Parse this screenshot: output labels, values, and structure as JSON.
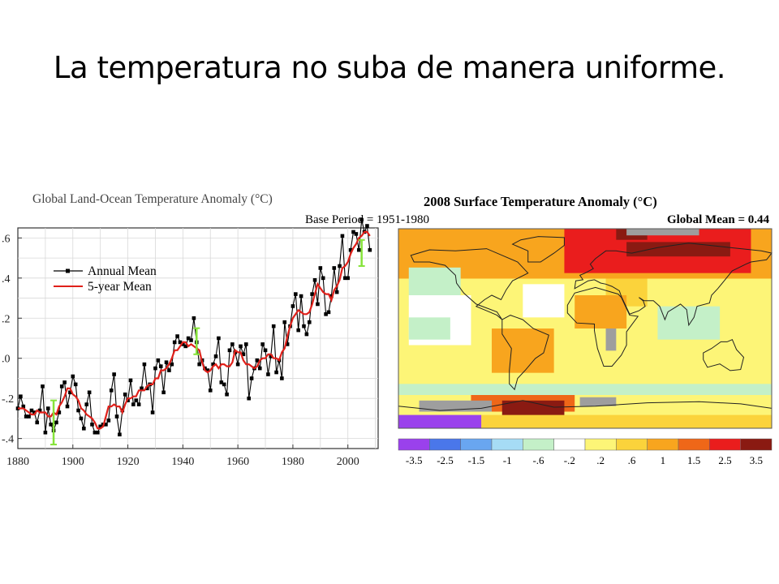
{
  "slide": {
    "title": "La temperatura no suba de manera uniforme."
  },
  "colors": {
    "annual_mean": "#000000",
    "five_year_mean": "#e0201a",
    "uncertainty_bars": "#86e33a"
  },
  "chart_data": [
    {
      "type": "line",
      "title": "Global Land-Ocean Temperature Anomaly (°C)",
      "subtitle": "",
      "xlabel": "",
      "ylabel": "",
      "xlim": [
        1880,
        2011
      ],
      "ylim": [
        -0.45,
        0.65
      ],
      "x_ticks": [
        1880,
        1900,
        1920,
        1940,
        1960,
        1980,
        2000
      ],
      "x_tick_labels": [
        "1880",
        "1900",
        "1920",
        "1940",
        "1960",
        "1980",
        "2000"
      ],
      "y_ticks": [
        -0.4,
        -0.2,
        0.0,
        0.2,
        0.4,
        0.6
      ],
      "y_tick_labels": [
        "-.4",
        "-.2",
        ".0",
        ".2",
        ".4",
        ".6"
      ],
      "grid": true,
      "legend": "top-left",
      "x": [
        1880,
        1881,
        1882,
        1883,
        1884,
        1885,
        1886,
        1887,
        1888,
        1889,
        1890,
        1891,
        1892,
        1893,
        1894,
        1895,
        1896,
        1897,
        1898,
        1899,
        1900,
        1901,
        1902,
        1903,
        1904,
        1905,
        1906,
        1907,
        1908,
        1909,
        1910,
        1911,
        1912,
        1913,
        1914,
        1915,
        1916,
        1917,
        1918,
        1919,
        1920,
        1921,
        1922,
        1923,
        1924,
        1925,
        1926,
        1927,
        1928,
        1929,
        1930,
        1931,
        1932,
        1933,
        1934,
        1935,
        1936,
        1937,
        1938,
        1939,
        1940,
        1941,
        1942,
        1943,
        1944,
        1945,
        1946,
        1947,
        1948,
        1949,
        1950,
        1951,
        1952,
        1953,
        1954,
        1955,
        1956,
        1957,
        1958,
        1959,
        1960,
        1961,
        1962,
        1963,
        1964,
        1965,
        1966,
        1967,
        1968,
        1969,
        1970,
        1971,
        1972,
        1973,
        1974,
        1975,
        1976,
        1977,
        1978,
        1979,
        1980,
        1981,
        1982,
        1983,
        1984,
        1985,
        1986,
        1987,
        1988,
        1989,
        1990,
        1991,
        1992,
        1993,
        1994,
        1995,
        1996,
        1997,
        1998,
        1999,
        2000,
        2001,
        2002,
        2003,
        2004,
        2005,
        2006,
        2007,
        2008
      ],
      "series": [
        {
          "name": "Annual Mean",
          "values": [
            -0.25,
            -0.19,
            -0.24,
            -0.29,
            -0.29,
            -0.26,
            -0.27,
            -0.32,
            -0.26,
            -0.14,
            -0.37,
            -0.25,
            -0.33,
            -0.36,
            -0.32,
            -0.27,
            -0.14,
            -0.12,
            -0.24,
            -0.17,
            -0.09,
            -0.13,
            -0.26,
            -0.3,
            -0.35,
            -0.23,
            -0.17,
            -0.33,
            -0.37,
            -0.37,
            -0.34,
            -0.33,
            -0.33,
            -0.31,
            -0.16,
            -0.08,
            -0.29,
            -0.38,
            -0.26,
            -0.18,
            -0.21,
            -0.11,
            -0.23,
            -0.21,
            -0.23,
            -0.15,
            -0.03,
            -0.15,
            -0.13,
            -0.27,
            -0.05,
            -0.01,
            -0.04,
            -0.17,
            -0.02,
            -0.06,
            -0.03,
            0.08,
            0.11,
            0.08,
            0.07,
            0.06,
            0.1,
            0.09,
            0.2,
            0.08,
            -0.03,
            -0.01,
            -0.05,
            -0.06,
            -0.16,
            -0.03,
            0.01,
            0.1,
            -0.12,
            -0.13,
            -0.18,
            0.04,
            0.07,
            0.03,
            -0.03,
            0.06,
            0.02,
            0.07,
            -0.2,
            -0.1,
            -0.05,
            -0.01,
            -0.05,
            0.07,
            0.04,
            -0.08,
            0.01,
            0.16,
            -0.07,
            -0.01,
            -0.1,
            0.18,
            0.07,
            0.16,
            0.26,
            0.32,
            0.14,
            0.31,
            0.16,
            0.12,
            0.18,
            0.32,
            0.39,
            0.27,
            0.45,
            0.4,
            0.22,
            0.23,
            0.31,
            0.45,
            0.33,
            0.46,
            0.61,
            0.4,
            0.4,
            0.54,
            0.63,
            0.62,
            0.54,
            0.69,
            0.63,
            0.66,
            0.54
          ]
        },
        {
          "name": "5-year Mean",
          "values": [
            -0.25,
            -0.25,
            -0.25,
            -0.26,
            -0.27,
            -0.28,
            -0.28,
            -0.26,
            -0.27,
            -0.27,
            -0.27,
            -0.29,
            -0.29,
            -0.27,
            -0.28,
            -0.24,
            -0.22,
            -0.19,
            -0.15,
            -0.15,
            -0.18,
            -0.19,
            -0.21,
            -0.25,
            -0.26,
            -0.28,
            -0.29,
            -0.3,
            -0.32,
            -0.35,
            -0.35,
            -0.34,
            -0.29,
            -0.24,
            -0.24,
            -0.23,
            -0.24,
            -0.24,
            -0.27,
            -0.23,
            -0.2,
            -0.2,
            -0.19,
            -0.19,
            -0.16,
            -0.16,
            -0.16,
            -0.14,
            -0.13,
            -0.13,
            -0.1,
            -0.1,
            -0.06,
            -0.06,
            -0.05,
            -0.03,
            0.0,
            0.04,
            0.04,
            0.06,
            0.08,
            0.08,
            0.06,
            0.07,
            0.06,
            0.05,
            0.04,
            -0.02,
            -0.06,
            -0.07,
            -0.06,
            -0.04,
            -0.03,
            -0.05,
            -0.03,
            -0.03,
            -0.04,
            -0.04,
            -0.02,
            0.04,
            0.03,
            0.03,
            -0.01,
            -0.03,
            -0.03,
            -0.04,
            -0.05,
            -0.04,
            -0.01,
            0.0,
            0.0,
            0.02,
            0.02,
            0.0,
            0.0,
            -0.01,
            0.03,
            0.05,
            0.11,
            0.16,
            0.2,
            0.22,
            0.24,
            0.23,
            0.22,
            0.22,
            0.23,
            0.27,
            0.32,
            0.37,
            0.35,
            0.33,
            0.32,
            0.32,
            0.29,
            0.34,
            0.36,
            0.39,
            0.45,
            0.46,
            0.48,
            0.52,
            0.55,
            0.57,
            0.6,
            0.61,
            0.63,
            0.63,
            0.61
          ]
        }
      ],
      "error_bars": [
        {
          "x": 1893,
          "low": -0.43,
          "high": -0.21
        },
        {
          "x": 1945,
          "low": 0.02,
          "high": 0.15
        },
        {
          "x": 2005,
          "low": 0.46,
          "high": 0.59
        }
      ]
    },
    {
      "type": "heatmap",
      "title": "2008 Surface Temperature Anomaly (°C)",
      "subtitle": "Base Period = 1951-1980",
      "annotation": "Global Mean = 0.44",
      "xlim": [
        -180,
        180
      ],
      "ylim": [
        -90,
        90
      ],
      "colorbar": {
        "labels": [
          "-3.5",
          "-2.5",
          "-1.5",
          "-1",
          "-.6",
          "-.2",
          ".2",
          ".6",
          "1",
          "1.5",
          "2.5",
          "3.5"
        ],
        "colors": [
          "#9a41ec",
          "#4a77ea",
          "#69a6f0",
          "#a6dcf5",
          "#c4f0c8",
          "#ffffff",
          "#fdf577",
          "#fbd33b",
          "#f8a51e",
          "#ef6718",
          "#ea1d1d",
          "#8a1a12"
        ]
      },
      "regions": [
        {
          "bin": 6,
          "lon": [
            -180,
            180
          ],
          "lat": [
            -90,
            90
          ]
        },
        {
          "bin": 8,
          "lon": [
            -180,
            180
          ],
          "lat": [
            45,
            90
          ]
        },
        {
          "bin": 10,
          "lon": [
            -20,
            160
          ],
          "lat": [
            50,
            90
          ]
        },
        {
          "bin": 11,
          "lon": [
            40,
            140
          ],
          "lat": [
            65,
            78
          ]
        },
        {
          "bin": 11,
          "lon": [
            30,
            60
          ],
          "lat": [
            80,
            90
          ]
        },
        {
          "bin": 4,
          "lon": [
            -170,
            -120
          ],
          "lat": [
            20,
            55
          ]
        },
        {
          "bin": 5,
          "lon": [
            -170,
            -110
          ],
          "lat": [
            -15,
            30
          ]
        },
        {
          "bin": 4,
          "lon": [
            -170,
            -130
          ],
          "lat": [
            -10,
            10
          ]
        },
        {
          "bin": 8,
          "lon": [
            -90,
            -30
          ],
          "lat": [
            -40,
            0
          ]
        },
        {
          "bin": 7,
          "lon": [
            20,
            60
          ],
          "lat": [
            20,
            45
          ]
        },
        {
          "bin": 8,
          "lon": [
            -10,
            40
          ],
          "lat": [
            0,
            30
          ]
        },
        {
          "bin": 4,
          "lon": [
            70,
            130
          ],
          "lat": [
            -10,
            20
          ]
        },
        {
          "bin": 5,
          "lon": [
            -60,
            -20
          ],
          "lat": [
            10,
            40
          ]
        },
        {
          "bin": 4,
          "lon": [
            -180,
            180
          ],
          "lat": [
            -60,
            -50
          ]
        },
        {
          "bin": 9,
          "lon": [
            -110,
            -10
          ],
          "lat": [
            -75,
            -60
          ]
        },
        {
          "bin": 11,
          "lon": [
            -80,
            -20
          ],
          "lat": [
            -80,
            -65
          ]
        },
        {
          "bin": 0,
          "lon": [
            -180,
            -100
          ],
          "lat": [
            -90,
            -78
          ]
        },
        {
          "bin": 7,
          "lon": [
            -100,
            180
          ],
          "lat": [
            -90,
            -78
          ]
        }
      ],
      "missing_regions": [
        {
          "lon": [
            -160,
            -90
          ],
          "lat": [
            -75,
            -65
          ]
        },
        {
          "lon": [
            -5,
            30
          ],
          "lat": [
            -70,
            -62
          ]
        },
        {
          "lon": [
            20,
            30
          ],
          "lat": [
            -20,
            0
          ]
        },
        {
          "lon": [
            40,
            110
          ],
          "lat": [
            84,
            90
          ]
        }
      ]
    }
  ]
}
